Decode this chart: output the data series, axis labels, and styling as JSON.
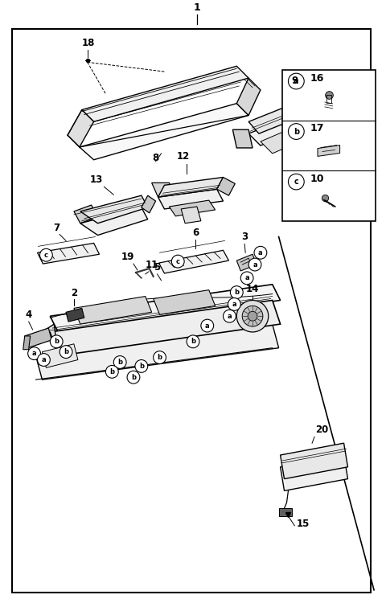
{
  "bg_color": "#ffffff",
  "border_color": "#000000",
  "fig_width": 4.8,
  "fig_height": 7.5,
  "dpi": 100,
  "line_color": "#1a1a1a",
  "legend": [
    {
      "letter": "a",
      "num": "16"
    },
    {
      "letter": "b",
      "num": "17"
    },
    {
      "letter": "c",
      "num": "10"
    }
  ]
}
